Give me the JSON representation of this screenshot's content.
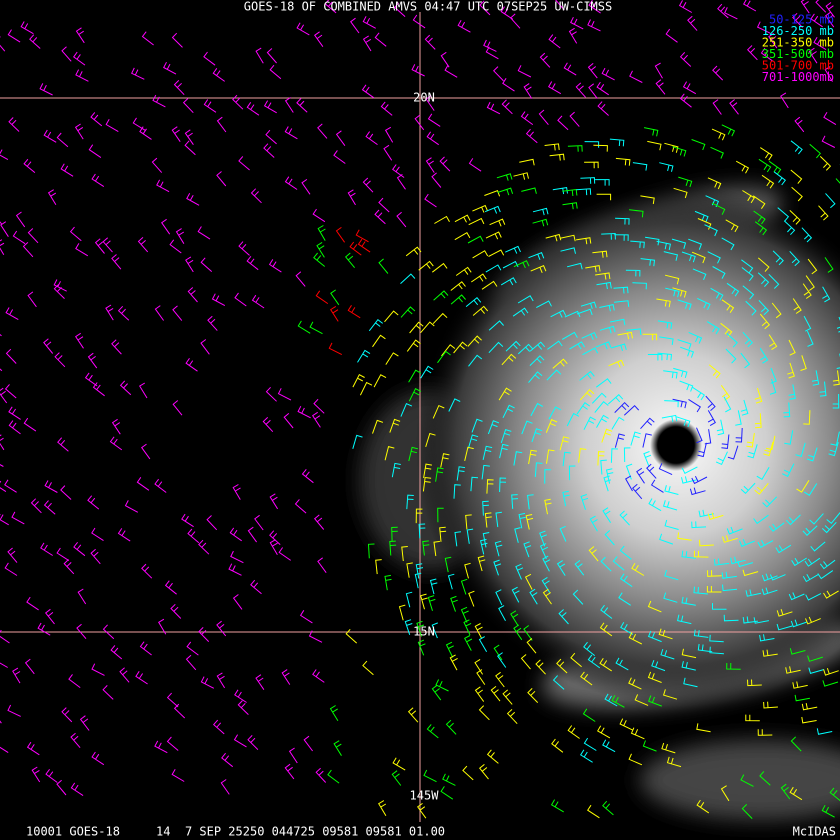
{
  "header": {
    "title": "GOES-18 OF COMBINED AMVS 04:47 UTC 07SEP25 UW-CIMSS"
  },
  "legend": [
    {
      "label": "50-125 mb",
      "color": "#2020ff"
    },
    {
      "label": "126-250 mb",
      "color": "#00ffff"
    },
    {
      "label": "251-350 mb",
      "color": "#ffff00"
    },
    {
      "label": "351-500 mb",
      "color": "#00ff00"
    },
    {
      "label": "501-700 mb",
      "color": "#ff0000"
    },
    {
      "label": "701-1000mb",
      "color": "#ff00ff"
    }
  ],
  "grid_labels": {
    "lat_north": "20N",
    "lat_south": "15N",
    "lon": "145W"
  },
  "footer": {
    "status": "10001 GOES-18     14  7 SEP 25250 044725 09581 09581 01.00",
    "brand": "McIDAS"
  }
}
